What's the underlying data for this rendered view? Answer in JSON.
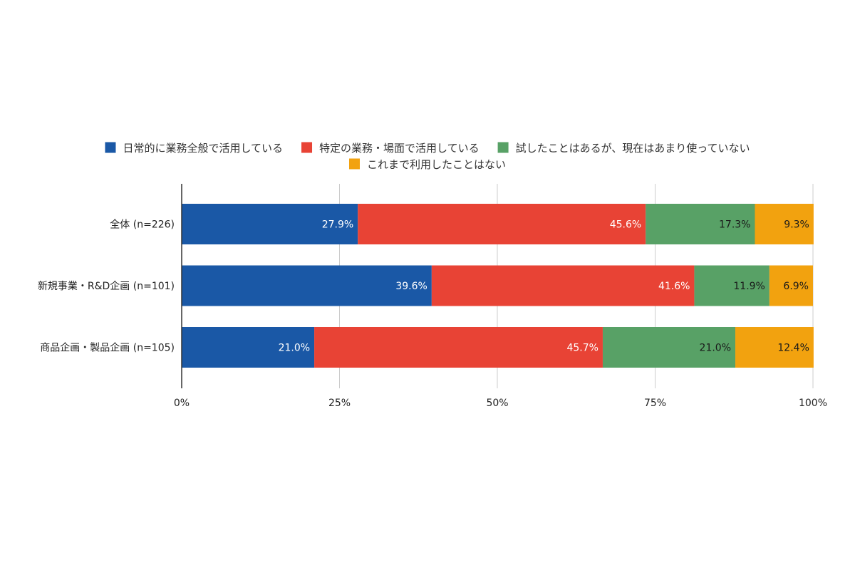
{
  "chart_data": {
    "type": "bar",
    "orientation": "horizontal",
    "stacked": true,
    "legend_position": "top",
    "grid": true,
    "xlim": [
      0,
      100
    ],
    "x_ticks": [
      "0%",
      "25%",
      "50%",
      "75%",
      "100%"
    ],
    "x_tick_values": [
      0,
      25,
      50,
      75,
      100
    ],
    "categories": [
      "全体 (n=226)",
      "新規事業・R&D企画 (n=101)",
      "商品企画・製品企画 (n=105)"
    ],
    "series": [
      {
        "name": "日常的に業務全般で活用している",
        "color": "#1A58A6",
        "label_color": "#ffffff",
        "values": [
          27.9,
          39.6,
          21.0
        ],
        "labels": [
          "27.9%",
          "39.6%",
          "21.0%"
        ]
      },
      {
        "name": "特定の業務・場面で活用している",
        "color": "#E84335",
        "label_color": "#ffffff",
        "values": [
          45.6,
          41.6,
          45.7
        ],
        "labels": [
          "45.6%",
          "41.6%",
          "45.7%"
        ]
      },
      {
        "name": "試したことはあるが、現在はあまり使っていない",
        "color": "#58A166",
        "label_color": "#1a1a1a",
        "values": [
          17.3,
          11.9,
          21.0
        ],
        "labels": [
          "17.3%",
          "11.9%",
          "21.0%"
        ]
      },
      {
        "name": "これまで利用したことはない",
        "color": "#F2A20F",
        "label_color": "#1a1a1a",
        "values": [
          9.3,
          6.9,
          12.4
        ],
        "labels": [
          "9.3%",
          "6.9%",
          "12.4%"
        ]
      }
    ]
  }
}
